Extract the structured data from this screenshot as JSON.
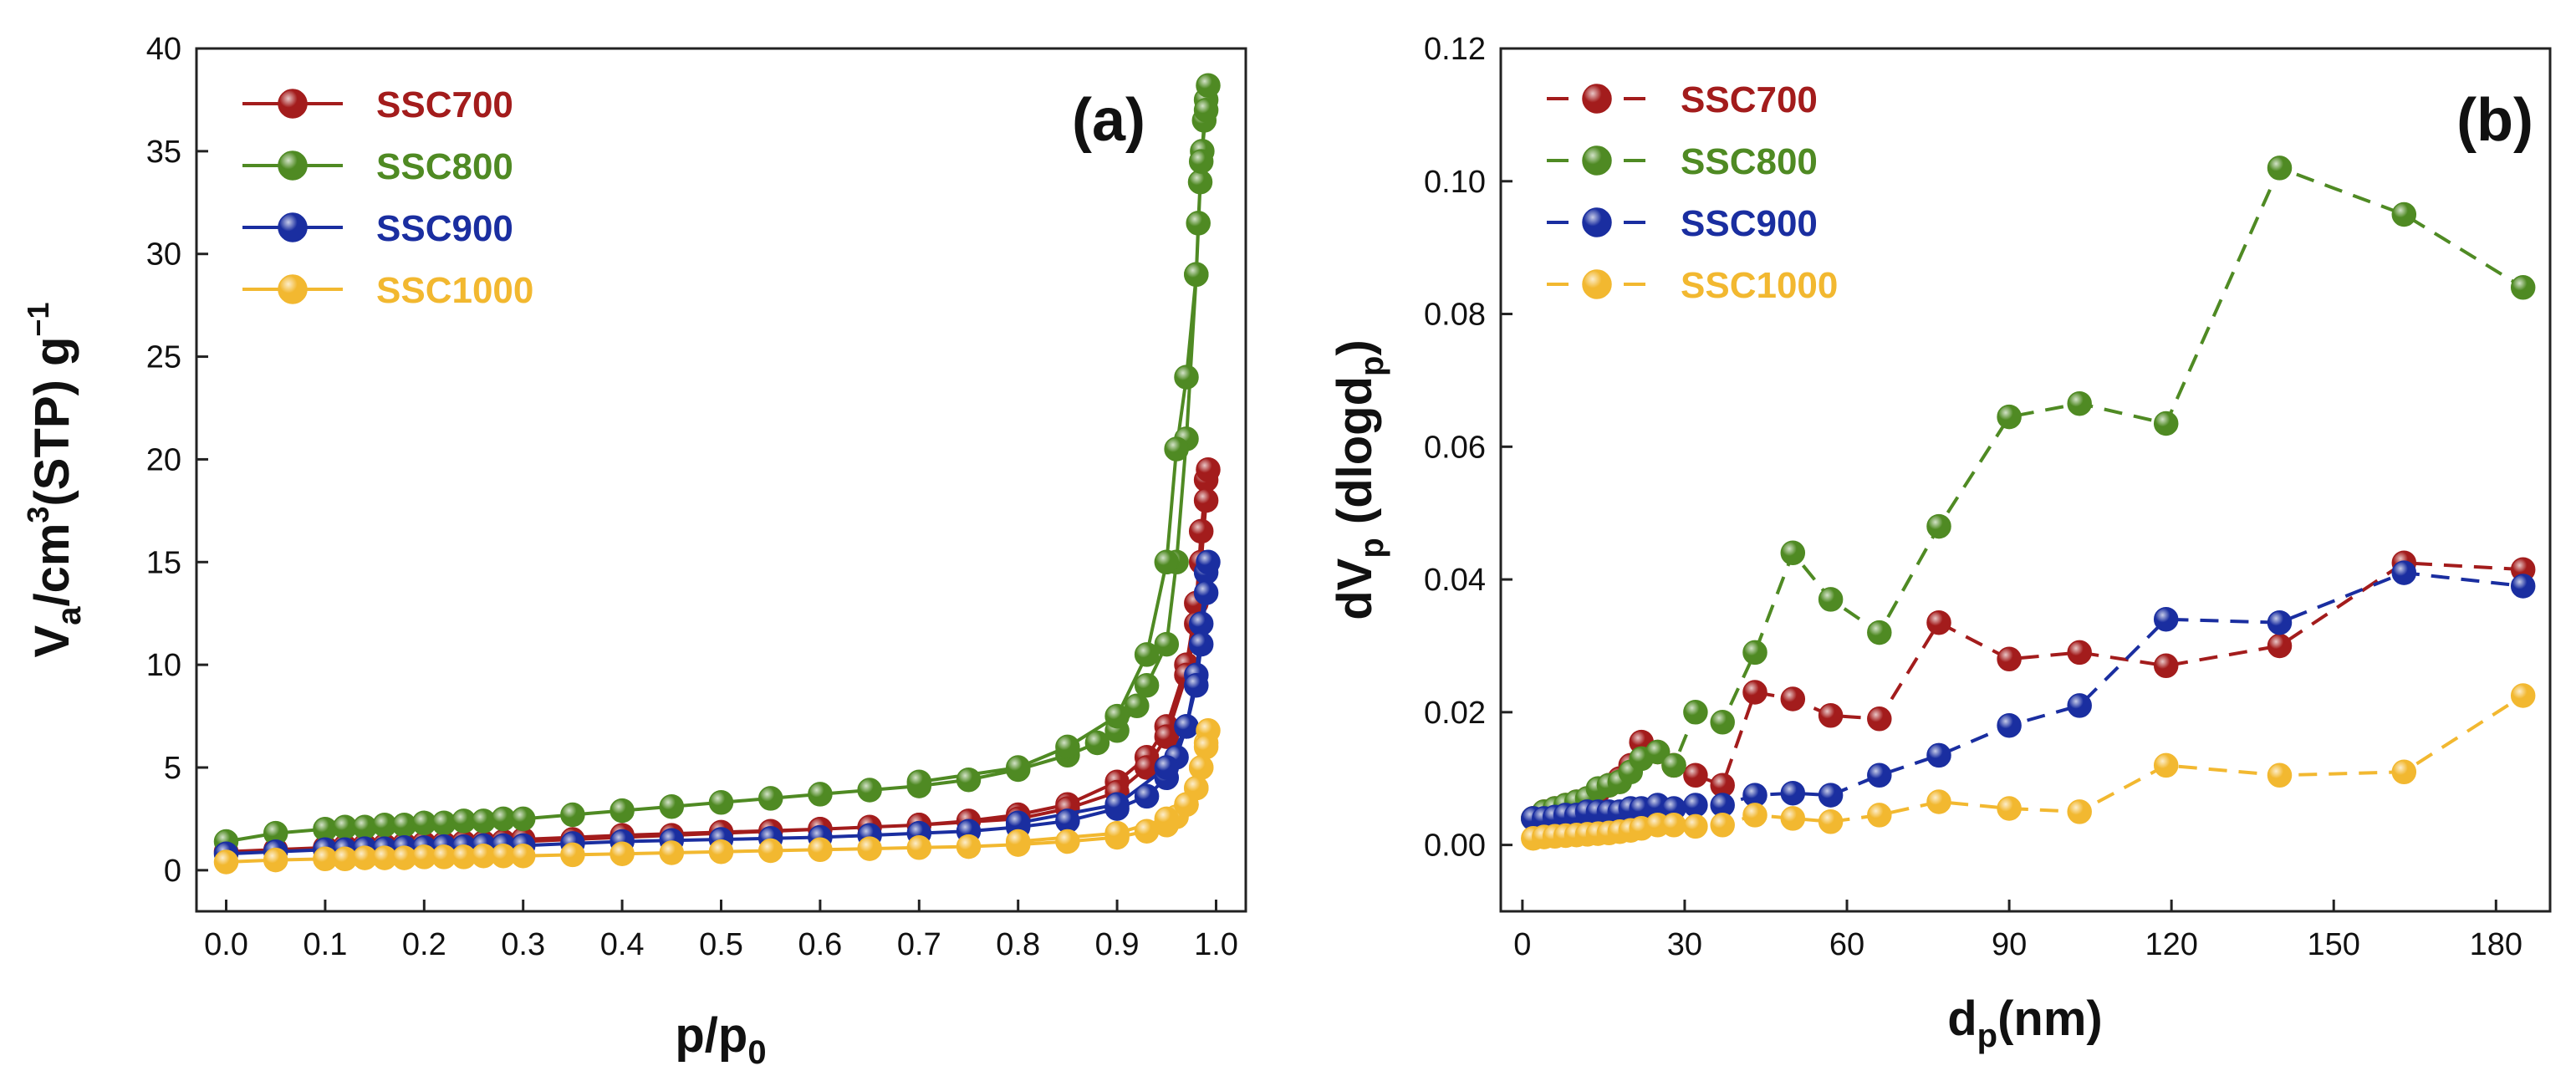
{
  "chart_data": [
    {
      "type": "line",
      "panel_label": "(a)",
      "xlabel_main": "p/p",
      "xlabel_sub": "0",
      "ylabel_a": "V",
      "ylabel_sub": "a",
      "ylabel_b": "/cm",
      "ylabel_sup": "3",
      "ylabel_c": "(STP) g",
      "ylabel_sup2": "−1",
      "xlim": [
        -0.03,
        1.03
      ],
      "ylim": [
        -2,
        40
      ],
      "xticks": [
        "0.0",
        "0.1",
        "0.2",
        "0.3",
        "0.4",
        "0.5",
        "0.6",
        "0.7",
        "0.8",
        "0.9",
        "1.0"
      ],
      "yticks": [
        "0",
        "5",
        "10",
        "15",
        "20",
        "25",
        "30",
        "35",
        "40"
      ],
      "legend_position": "top-left",
      "series": [
        {
          "name": "SSC700",
          "color": "#a31c1c",
          "x": [
            0.0,
            0.05,
            0.1,
            0.12,
            0.14,
            0.16,
            0.18,
            0.2,
            0.22,
            0.24,
            0.26,
            0.28,
            0.3,
            0.35,
            0.4,
            0.45,
            0.5,
            0.55,
            0.6,
            0.65,
            0.7,
            0.75,
            0.8,
            0.85,
            0.9,
            0.93,
            0.95,
            0.97,
            0.98,
            0.985,
            0.99,
            0.992,
            0.99,
            0.985,
            0.98,
            0.97,
            0.95,
            0.93,
            0.9,
            0.85,
            0.8,
            0.7,
            0.6,
            0.5,
            0.4,
            0.3
          ],
          "y": [
            0.9,
            1.0,
            1.1,
            1.15,
            1.2,
            1.2,
            1.25,
            1.3,
            1.3,
            1.35,
            1.35,
            1.4,
            1.4,
            1.5,
            1.6,
            1.7,
            1.8,
            1.9,
            2.0,
            2.1,
            2.2,
            2.4,
            2.7,
            3.2,
            4.3,
            5.5,
            7.0,
            10.0,
            13.0,
            16.5,
            19.0,
            19.5,
            18.0,
            15.0,
            12.0,
            9.5,
            6.5,
            5.0,
            3.8,
            3.0,
            2.5,
            2.2,
            2.0,
            1.85,
            1.7,
            1.5
          ]
        },
        {
          "name": "SSC800",
          "color": "#4f8a23",
          "x": [
            0.0,
            0.05,
            0.1,
            0.12,
            0.14,
            0.16,
            0.18,
            0.2,
            0.22,
            0.24,
            0.26,
            0.28,
            0.3,
            0.35,
            0.4,
            0.45,
            0.5,
            0.55,
            0.6,
            0.65,
            0.7,
            0.75,
            0.8,
            0.85,
            0.88,
            0.9,
            0.92,
            0.93,
            0.95,
            0.96,
            0.97,
            0.98,
            0.982,
            0.984,
            0.986,
            0.988,
            0.99,
            0.992,
            0.99,
            0.985,
            0.98,
            0.97,
            0.96,
            0.95,
            0.93,
            0.9,
            0.85,
            0.8,
            0.7
          ],
          "y": [
            1.4,
            1.8,
            2.0,
            2.1,
            2.1,
            2.2,
            2.2,
            2.3,
            2.3,
            2.4,
            2.4,
            2.5,
            2.5,
            2.7,
            2.9,
            3.1,
            3.3,
            3.5,
            3.7,
            3.9,
            4.1,
            4.4,
            4.9,
            5.6,
            6.2,
            6.8,
            8.0,
            9.0,
            11.0,
            15.0,
            21.0,
            29.0,
            31.5,
            33.5,
            35.0,
            36.5,
            37.5,
            38.2,
            37.0,
            34.5,
            29.0,
            24.0,
            20.5,
            15.0,
            10.5,
            7.5,
            6.0,
            5.0,
            4.3
          ]
        },
        {
          "name": "SSC900",
          "color": "#1a2ea0",
          "x": [
            0.0,
            0.05,
            0.1,
            0.12,
            0.14,
            0.16,
            0.18,
            0.2,
            0.22,
            0.24,
            0.26,
            0.28,
            0.3,
            0.35,
            0.4,
            0.45,
            0.5,
            0.55,
            0.6,
            0.65,
            0.7,
            0.75,
            0.8,
            0.85,
            0.9,
            0.93,
            0.95,
            0.96,
            0.97,
            0.98,
            0.985,
            0.99,
            0.992,
            0.99,
            0.985,
            0.98,
            0.97,
            0.95,
            0.9,
            0.8
          ],
          "y": [
            0.8,
            0.9,
            1.0,
            1.0,
            1.05,
            1.05,
            1.1,
            1.1,
            1.15,
            1.15,
            1.2,
            1.2,
            1.2,
            1.3,
            1.4,
            1.45,
            1.5,
            1.55,
            1.6,
            1.7,
            1.8,
            1.9,
            2.1,
            2.4,
            3.0,
            3.6,
            4.5,
            5.5,
            7.0,
            9.5,
            12.0,
            14.5,
            15.0,
            13.5,
            11.0,
            9.0,
            7.0,
            5.0,
            3.2,
            2.3
          ]
        },
        {
          "name": "SSC1000",
          "color": "#f2b830",
          "x": [
            0.0,
            0.05,
            0.1,
            0.12,
            0.14,
            0.16,
            0.18,
            0.2,
            0.22,
            0.24,
            0.26,
            0.28,
            0.3,
            0.35,
            0.4,
            0.45,
            0.5,
            0.55,
            0.6,
            0.65,
            0.7,
            0.75,
            0.8,
            0.85,
            0.9,
            0.93,
            0.95,
            0.96,
            0.97,
            0.98,
            0.985,
            0.99,
            0.992,
            0.99,
            0.985,
            0.98,
            0.97,
            0.95,
            0.9,
            0.8
          ],
          "y": [
            0.4,
            0.5,
            0.55,
            0.55,
            0.6,
            0.6,
            0.6,
            0.65,
            0.65,
            0.65,
            0.7,
            0.7,
            0.7,
            0.75,
            0.8,
            0.85,
            0.9,
            0.95,
            1.0,
            1.05,
            1.1,
            1.15,
            1.25,
            1.4,
            1.6,
            1.9,
            2.2,
            2.6,
            3.2,
            4.0,
            5.0,
            6.2,
            6.8,
            6.0,
            5.0,
            4.0,
            3.2,
            2.5,
            1.8,
            1.4
          ]
        }
      ]
    },
    {
      "type": "line",
      "line_style": "dashed",
      "panel_label": "(b)",
      "xlabel_main": "d",
      "xlabel_sub": "p",
      "xlabel_tail": "(nm)",
      "ylabel_main": "dV",
      "ylabel_sub": "p",
      "ylabel_tail": " (dlogd",
      "ylabel_sub2": "p",
      "ylabel_close": ")",
      "xlim": [
        -4,
        190
      ],
      "ylim": [
        -0.01,
        0.12
      ],
      "xticks": [
        "0",
        "30",
        "60",
        "90",
        "120",
        "150",
        "180"
      ],
      "yticks": [
        "0.00",
        "0.02",
        "0.04",
        "0.06",
        "0.08",
        "0.10",
        "0.12"
      ],
      "legend_position": "top-left",
      "series": [
        {
          "name": "SSC700",
          "color": "#a31c1c",
          "x": [
            2,
            4,
            6,
            8,
            10,
            12,
            14,
            16,
            18,
            20,
            22,
            25,
            28,
            32,
            37,
            43,
            50,
            57,
            66,
            77,
            90,
            103,
            119,
            140,
            163,
            185
          ],
          "y": [
            0.004,
            0.005,
            0.0055,
            0.006,
            0.0065,
            0.007,
            0.008,
            0.009,
            0.01,
            0.012,
            0.0155,
            0.014,
            0.012,
            0.0105,
            0.009,
            0.023,
            0.022,
            0.0195,
            0.019,
            0.0335,
            0.028,
            0.029,
            0.027,
            0.03,
            0.0425,
            0.0415
          ]
        },
        {
          "name": "SSC800",
          "color": "#4f8a23",
          "x": [
            2,
            4,
            6,
            8,
            10,
            12,
            14,
            16,
            18,
            20,
            22,
            25,
            28,
            32,
            37,
            43,
            50,
            57,
            66,
            77,
            90,
            103,
            119,
            140,
            163,
            185
          ],
          "y": [
            0.004,
            0.005,
            0.0055,
            0.006,
            0.0065,
            0.007,
            0.0085,
            0.009,
            0.0095,
            0.011,
            0.013,
            0.014,
            0.012,
            0.02,
            0.0185,
            0.029,
            0.044,
            0.037,
            0.032,
            0.048,
            0.0645,
            0.0665,
            0.0635,
            0.102,
            0.095,
            0.084
          ]
        },
        {
          "name": "SSC900",
          "color": "#1a2ea0",
          "x": [
            2,
            4,
            6,
            8,
            10,
            12,
            14,
            16,
            18,
            20,
            22,
            25,
            28,
            32,
            37,
            43,
            50,
            57,
            66,
            77,
            90,
            103,
            119,
            140,
            163,
            185
          ],
          "y": [
            0.004,
            0.004,
            0.0042,
            0.0045,
            0.0045,
            0.005,
            0.005,
            0.005,
            0.005,
            0.0055,
            0.0055,
            0.006,
            0.0055,
            0.006,
            0.006,
            0.0075,
            0.0078,
            0.0075,
            0.0105,
            0.0135,
            0.018,
            0.021,
            0.034,
            0.0335,
            0.041,
            0.039
          ]
        },
        {
          "name": "SSC1000",
          "color": "#f2b830",
          "x": [
            2,
            4,
            6,
            8,
            10,
            12,
            14,
            16,
            18,
            20,
            22,
            25,
            28,
            32,
            37,
            43,
            50,
            57,
            66,
            77,
            90,
            103,
            119,
            140,
            163,
            185
          ],
          "y": [
            0.001,
            0.0012,
            0.0013,
            0.0014,
            0.0015,
            0.0016,
            0.0017,
            0.0018,
            0.002,
            0.0022,
            0.0025,
            0.003,
            0.003,
            0.0028,
            0.003,
            0.0045,
            0.004,
            0.0035,
            0.0045,
            0.0065,
            0.0055,
            0.005,
            0.012,
            0.0105,
            0.011,
            0.0225
          ]
        }
      ]
    }
  ]
}
